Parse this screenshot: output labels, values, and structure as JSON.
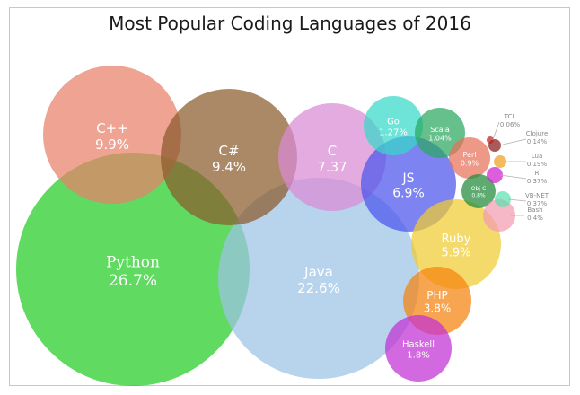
{
  "chart_data": {
    "type": "bubble",
    "title": "Most Popular Coding Languages of 2016",
    "series": [
      {
        "name": "Python",
        "label": "26.7%",
        "value": 26.7,
        "color": "#22cc22"
      },
      {
        "name": "Java",
        "label": "22.6%",
        "value": 22.6,
        "color": "#9dc3e6"
      },
      {
        "name": "C++",
        "label": "9.9%",
        "value": 9.9,
        "color": "#e8806a"
      },
      {
        "name": "C#",
        "label": "9.4%",
        "value": 9.4,
        "color": "#8b5a2b"
      },
      {
        "name": "C",
        "label": "7.37",
        "value": 7.37,
        "color": "#d98ad6"
      },
      {
        "name": "JS",
        "label": "6.9%",
        "value": 6.9,
        "color": "#4b55ec"
      },
      {
        "name": "Ruby",
        "label": "5.9%",
        "value": 5.9,
        "color": "#f0cc30"
      },
      {
        "name": "PHP",
        "label": "3.8%",
        "value": 3.8,
        "color": "#f5820f"
      },
      {
        "name": "Haskell",
        "label": "1.8%",
        "value": 1.8,
        "color": "#c22fd4"
      },
      {
        "name": "Go",
        "label": "1.27%",
        "value": 1.27,
        "color": "#36d8c8"
      },
      {
        "name": "Scala",
        "label": "1.04%",
        "value": 1.04,
        "color": "#2aa860"
      },
      {
        "name": "Perl",
        "label": "0.9%",
        "value": 0.9,
        "color": "#e8705a"
      },
      {
        "name": "Obj-C",
        "label": "0.8%",
        "value": 0.8,
        "color": "#1f8a3a"
      },
      {
        "name": "Bash",
        "label": "0.4%",
        "value": 0.4,
        "color": "#f29bb0"
      },
      {
        "name": "VB-NET",
        "label": "0.37%",
        "value": 0.37,
        "color": "#5de0b0"
      },
      {
        "name": "R",
        "label": "0.37%",
        "value": 0.37,
        "color": "#d020d0"
      },
      {
        "name": "Lua",
        "label": "0.19%",
        "value": 0.19,
        "color": "#f0a020"
      },
      {
        "name": "Clojure",
        "label": "0.14%",
        "value": 0.14,
        "color": "#8a1a1a"
      },
      {
        "name": "TCL",
        "label": "0.06%",
        "value": 0.06,
        "color": "#c02020"
      }
    ]
  }
}
